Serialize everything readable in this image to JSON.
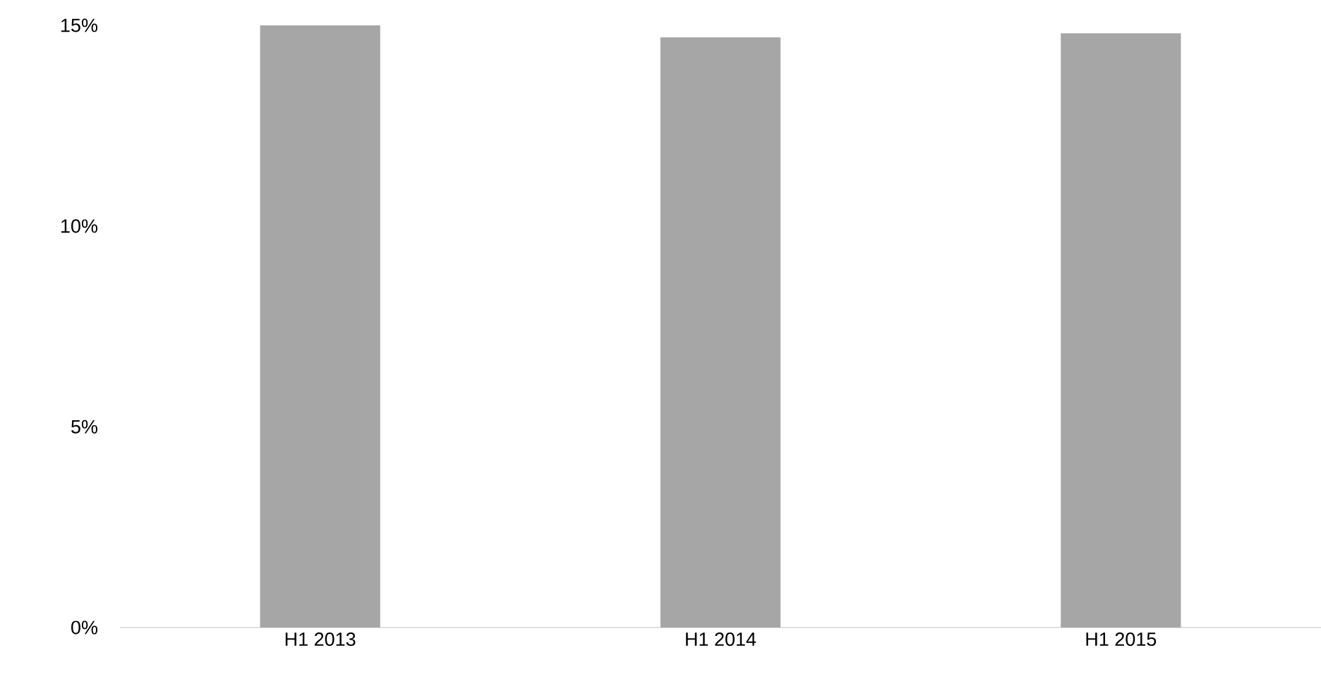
{
  "chart_data": {
    "type": "bar",
    "categories": [
      "H1 2013",
      "H1 2014",
      "H1 2015"
    ],
    "values": [
      15.0,
      14.7,
      14.8
    ],
    "color": "#a6a6a6",
    "ylim": [
      0,
      15
    ],
    "yticks": [
      {
        "value": 0,
        "label": "0%"
      },
      {
        "value": 5,
        "label": "5%"
      },
      {
        "value": 10,
        "label": "10%"
      },
      {
        "value": 15,
        "label": "15%"
      }
    ],
    "grid": false
  }
}
